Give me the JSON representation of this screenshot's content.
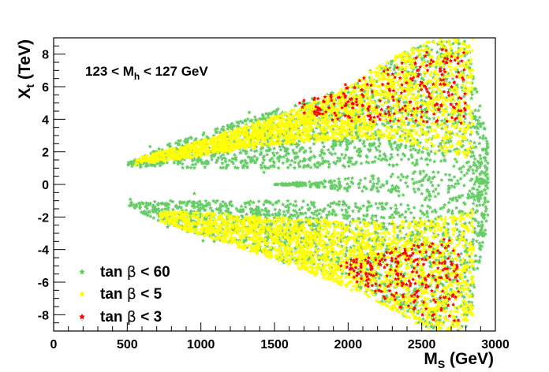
{
  "chart_data": {
    "type": "scatter",
    "title": "",
    "xlabel": "M",
    "xlabel_sub": "S",
    "xlabel_unit": " (GeV)",
    "ylabel": "X",
    "ylabel_sub": "t",
    "ylabel_unit": " (TeV)",
    "xlim": [
      0,
      3000
    ],
    "ylim": [
      -9,
      9
    ],
    "x_ticks": [
      0,
      500,
      1000,
      1500,
      2000,
      2500,
      3000
    ],
    "y_ticks": [
      -8,
      -6,
      -4,
      -2,
      0,
      2,
      4,
      6,
      8
    ],
    "x_tick_labels": [
      "0",
      "500",
      "1000",
      "1500",
      "2000",
      "2500",
      "3000"
    ],
    "y_tick_labels": [
      "-8",
      "-6",
      "-4",
      "-2",
      "0",
      "2",
      "4",
      "6",
      "8"
    ],
    "grid": false,
    "annotation": {
      "prefix": "123 < M",
      "sub": "h",
      "suffix": " < 127 GeV"
    },
    "legend_position": "bottom-left",
    "series": [
      {
        "name": "tan β < 60",
        "label_main": "tan ",
        "label_greek": "β",
        "label_rest": " < 60",
        "color": "#66cc66",
        "region": {
          "upper_band": [
            [
              500,
              1.1,
              1.3
            ],
            [
              800,
              1.0,
              2.6
            ],
            [
              1200,
              1.0,
              3.7
            ],
            [
              1600,
              1.0,
              4.8
            ],
            [
              2000,
              1.0,
              6.0
            ],
            [
              2400,
              1.1,
              8.2
            ],
            [
              2600,
              1.3,
              9.0
            ],
            [
              2800,
              0.5,
              9.0
            ],
            [
              2950,
              -0.5,
              2.5
            ]
          ],
          "lower_band": [
            [
              500,
              -1.3,
              -1.1
            ],
            [
              800,
              -2.6,
              -1.0
            ],
            [
              1200,
              -3.7,
              -1.0
            ],
            [
              1600,
              -4.8,
              -1.0
            ],
            [
              2000,
              -6.0,
              -1.0
            ],
            [
              2400,
              -8.2,
              -1.1
            ],
            [
              2600,
              -9.0,
              -1.3
            ],
            [
              2800,
              -9.0,
              -0.5
            ],
            [
              2950,
              -2.5,
              0.5
            ]
          ]
        },
        "count": 3200
      },
      {
        "name": "tan β < 5",
        "label_main": "tan ",
        "label_greek": "β",
        "label_rest": " < 5",
        "color": "#ffff00",
        "region": {
          "upper_band": [
            [
              550,
              1.2,
              1.6
            ],
            [
              900,
              1.6,
              2.4
            ],
            [
              1300,
              2.2,
              3.6
            ],
            [
              1700,
              2.6,
              4.8
            ],
            [
              2000,
              2.8,
              6.0
            ],
            [
              2300,
              2.8,
              7.8
            ],
            [
              2600,
              2.0,
              9.0
            ],
            [
              2850,
              1.5,
              9.0
            ]
          ],
          "lower_band": [
            [
              700,
              -2.2,
              -1.6
            ],
            [
              1100,
              -3.4,
              -1.8
            ],
            [
              1500,
              -4.6,
              -2.0
            ],
            [
              1900,
              -6.0,
              -2.2
            ],
            [
              2200,
              -7.2,
              -2.3
            ],
            [
              2500,
              -8.8,
              -2.2
            ],
            [
              2750,
              -9.0,
              -1.8
            ],
            [
              2850,
              -8.0,
              -1.5
            ]
          ]
        },
        "count": 4200
      },
      {
        "name": "tan β < 3",
        "label_main": "tan ",
        "label_greek": "β",
        "label_rest": " < 3",
        "color": "#ff0000",
        "region": {
          "upper_band": [
            [
              1650,
              4.2,
              5.0
            ],
            [
              2000,
              3.8,
              6.2
            ],
            [
              2300,
              3.8,
              7.2
            ],
            [
              2550,
              3.8,
              8.2
            ],
            [
              2800,
              3.6,
              8.6
            ]
          ],
          "lower_band": [
            [
              1950,
              -5.4,
              -4.8
            ],
            [
              2200,
              -6.8,
              -4.2
            ],
            [
              2500,
              -8.4,
              -3.6
            ],
            [
              2750,
              -8.6,
              -3.0
            ]
          ]
        },
        "count": 460
      }
    ]
  }
}
